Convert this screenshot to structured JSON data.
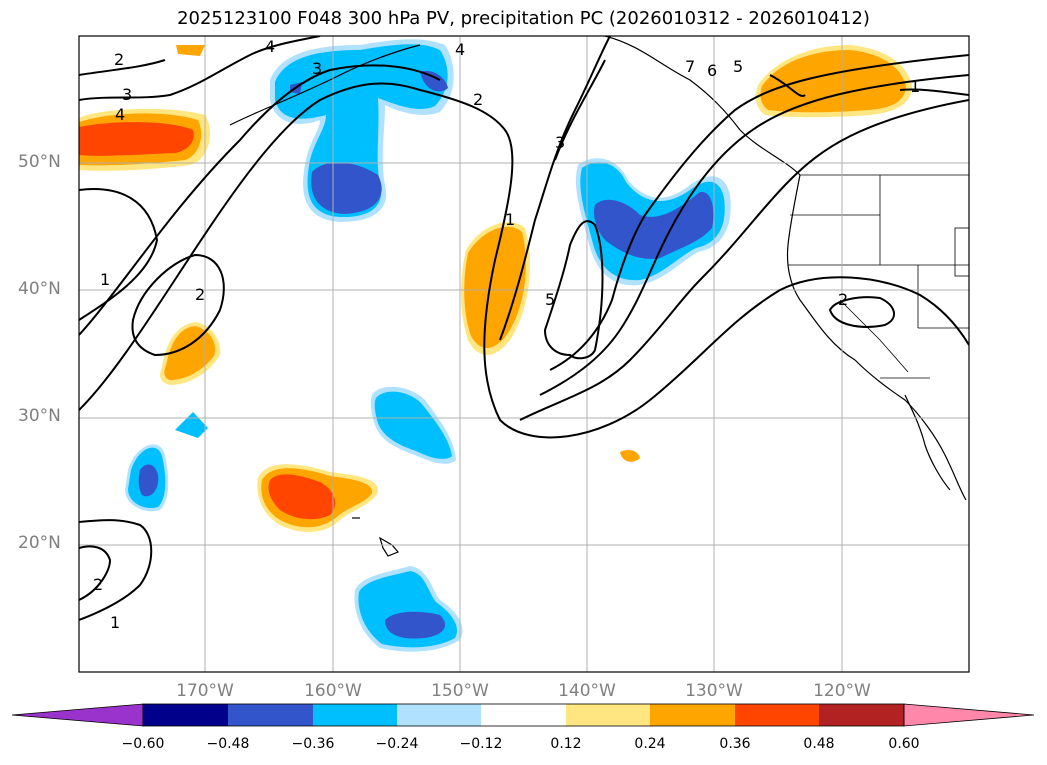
{
  "title": "2025123100 F048 300 hPa PV, precipitation PC (2026010312 - 2026010412)",
  "lat_labels": [
    "50°N",
    "40°N",
    "30°N",
    "20°N"
  ],
  "lon_labels": [
    "170°W",
    "160°W",
    "150°W",
    "140°W",
    "130°W",
    "120°W"
  ],
  "contour_labels": [
    "1",
    "2",
    "3",
    "4",
    "5",
    "6",
    "7"
  ],
  "colorbar": {
    "ticks": [
      "−0.60",
      "−0.48",
      "−0.36",
      "−0.24",
      "−0.12",
      "0.12",
      "0.24",
      "0.36",
      "0.48",
      "0.60"
    ],
    "colors": [
      "#9933cc",
      "#00008b",
      "#3355cc",
      "#00bfff",
      "#b0e2ff",
      "#ffffff",
      "#ffe680",
      "#ffa500",
      "#ff4500",
      "#b22222",
      "#ff88aa"
    ]
  }
}
